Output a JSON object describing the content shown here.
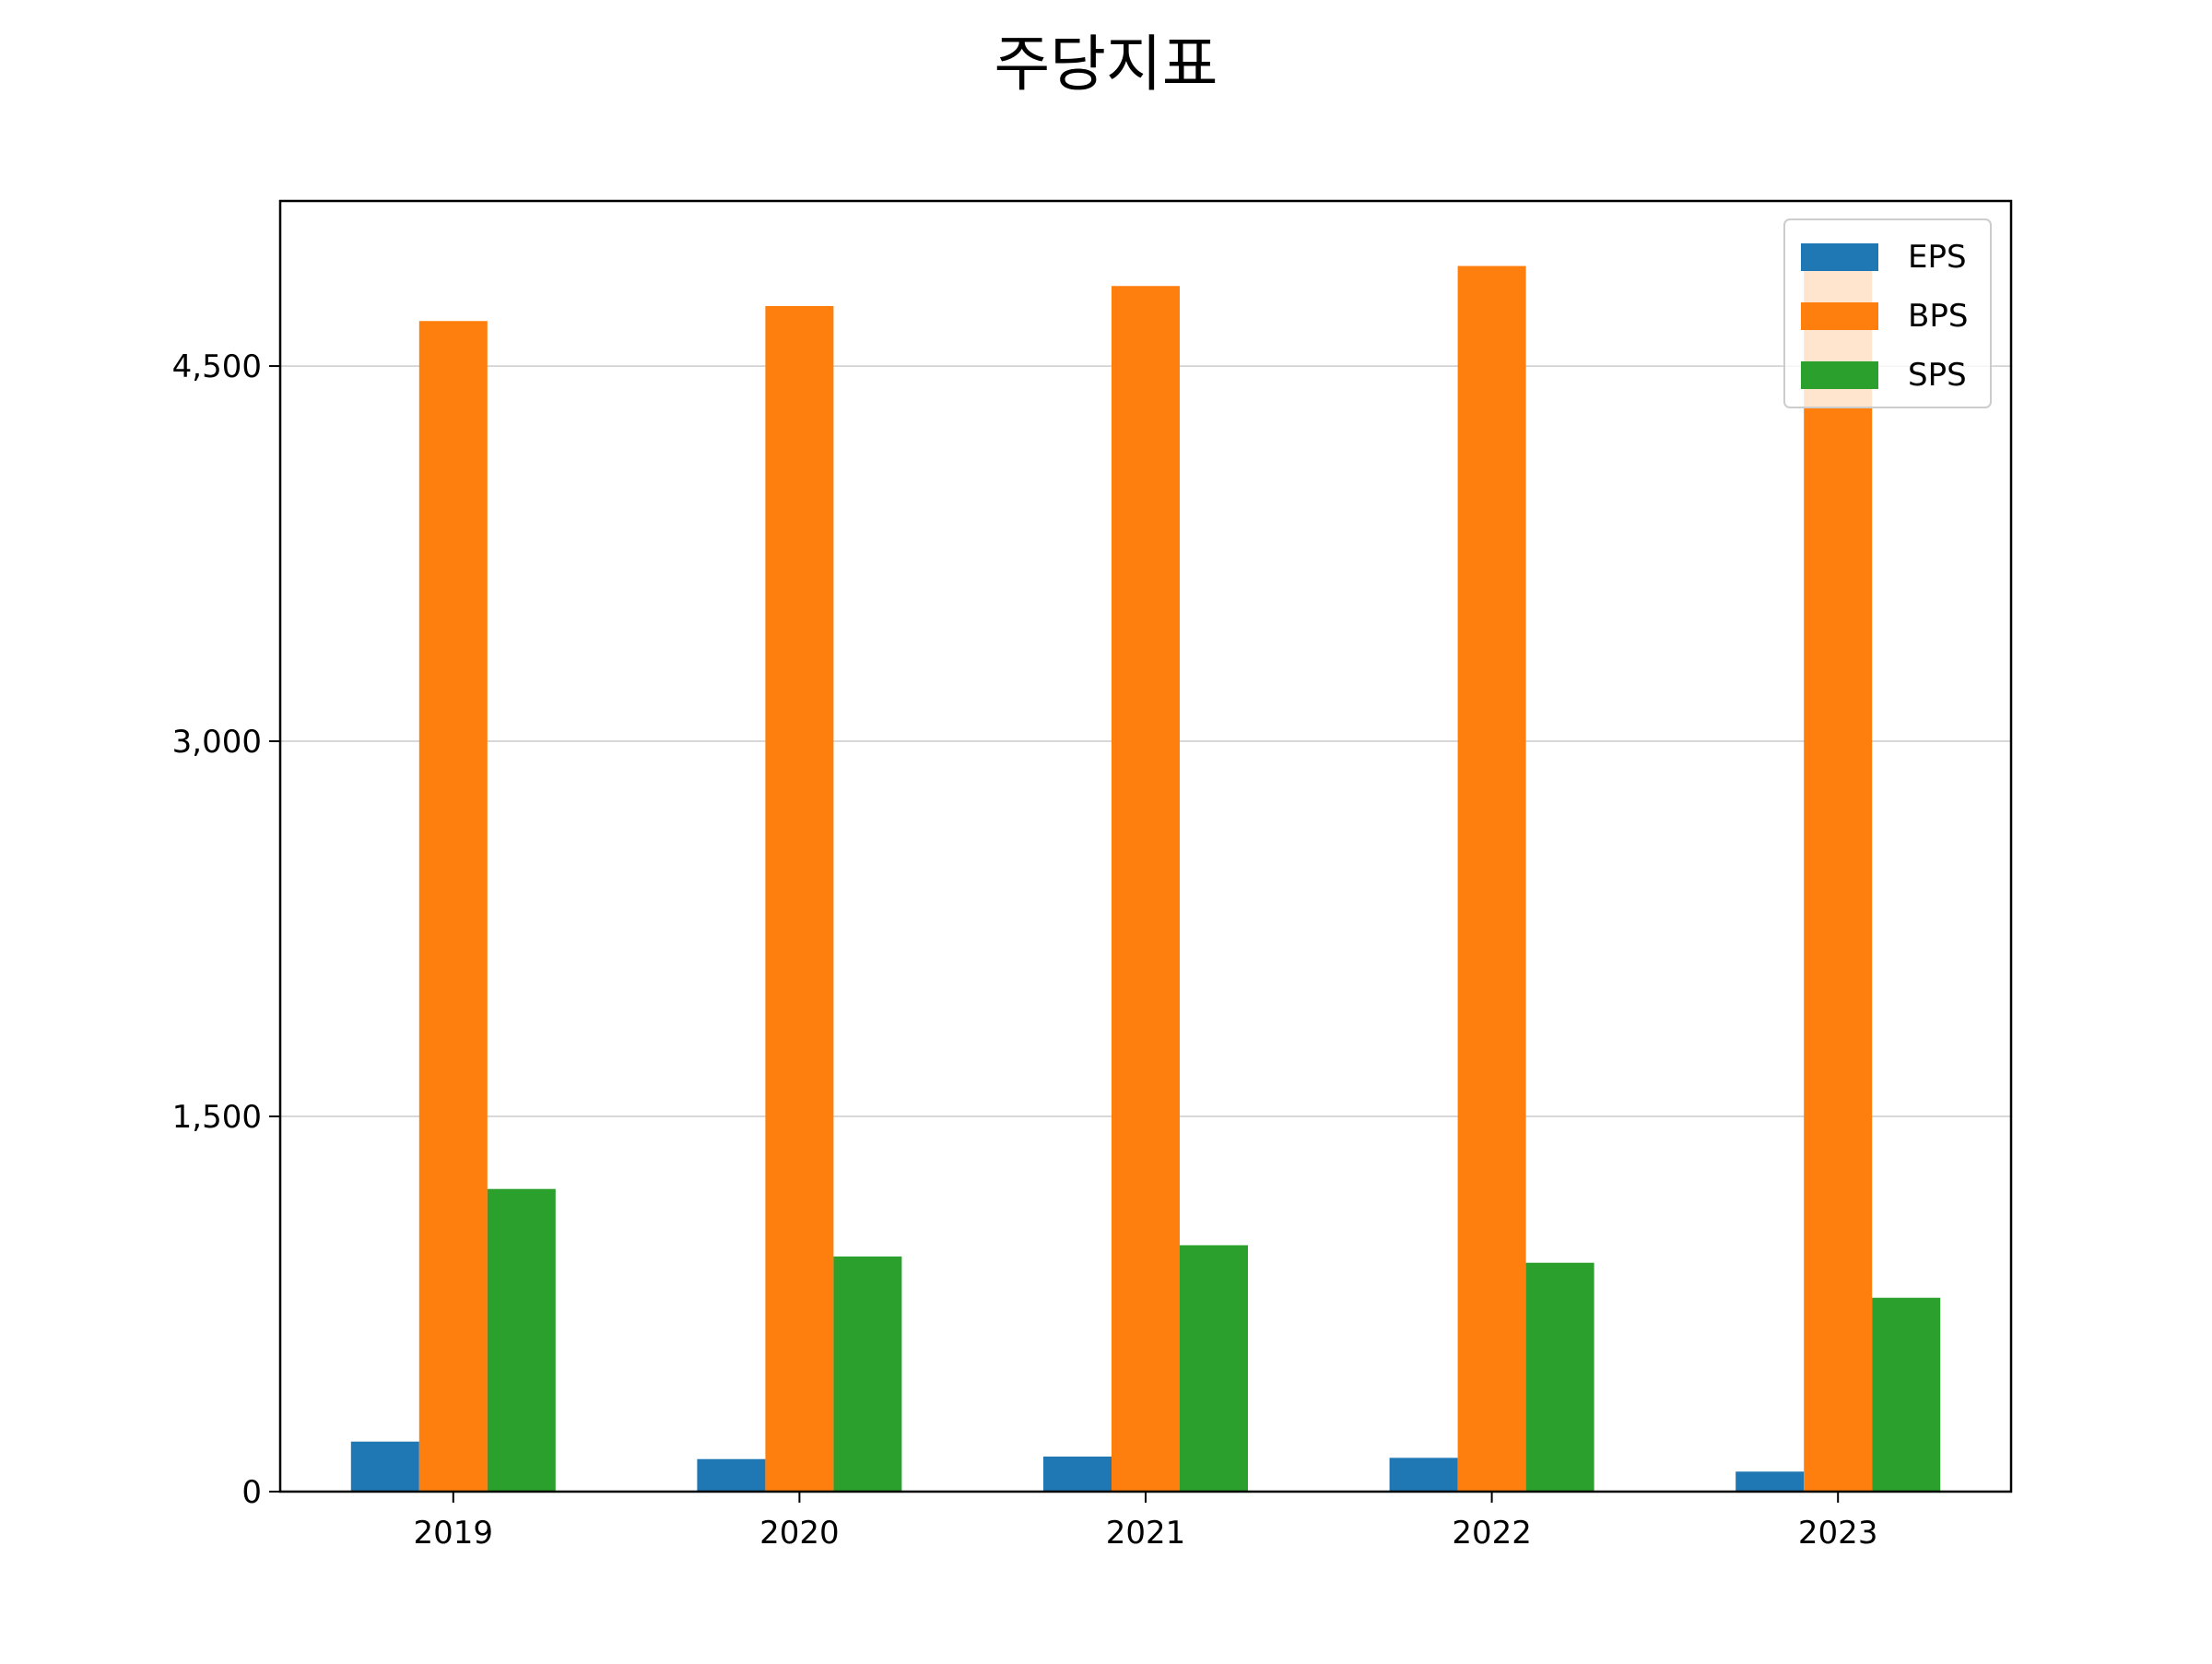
{
  "chart_data": {
    "type": "bar",
    "title": "주당지표",
    "xlabel": "",
    "ylabel": "",
    "categories": [
      "2019",
      "2020",
      "2021",
      "2022",
      "2023"
    ],
    "series": [
      {
        "name": "EPS",
        "color": "#1f77b4",
        "values": [
          200,
          130,
          140,
          135,
          80
        ]
      },
      {
        "name": "BPS",
        "color": "#ff7f0e",
        "values": [
          4680,
          4740,
          4820,
          4900,
          4910
        ]
      },
      {
        "name": "SPS",
        "color": "#2ca02c",
        "values": [
          1210,
          940,
          985,
          915,
          775
        ]
      }
    ],
    "ylim": [
      0,
      5160
    ],
    "yticks": [
      0,
      1500,
      3000,
      4500
    ],
    "ytick_labels": [
      "0",
      "1,500",
      "3,000",
      "4,500"
    ],
    "grid": "y",
    "legend_position": "upper right"
  }
}
